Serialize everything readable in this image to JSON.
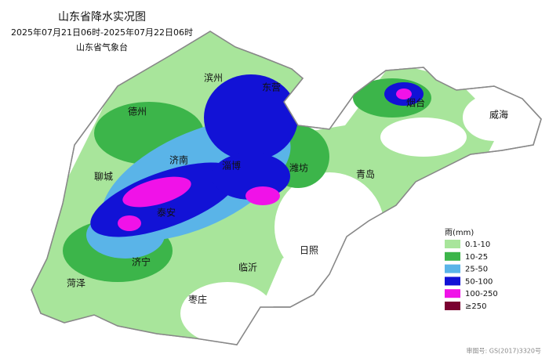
{
  "header": {
    "title": "山东省降水实况图",
    "period": "2025年07月21日06时-2025年07月22日06时",
    "agency": "山东省气象台"
  },
  "cities": [
    "滨州",
    "东营",
    "烟台",
    "威海",
    "德州",
    "济南",
    "淄博",
    "潍坊",
    "青岛",
    "聊城",
    "泰安",
    "日照",
    "临沂",
    "济宁",
    "菏泽",
    "枣庄"
  ],
  "legend": {
    "title": "雨(mm)",
    "items": [
      {
        "label": "0.1-10",
        "color": "#a8e59b"
      },
      {
        "label": "10-25",
        "color": "#3cb54a"
      },
      {
        "label": "25-50",
        "color": "#5ab4e8"
      },
      {
        "label": "50-100",
        "color": "#1212d6"
      },
      {
        "label": "100-250",
        "color": "#f012e8"
      },
      {
        "label": "≥250",
        "color": "#7a0030"
      }
    ]
  },
  "footer": {
    "approval": "审图号: GS(2017)3320号"
  }
}
